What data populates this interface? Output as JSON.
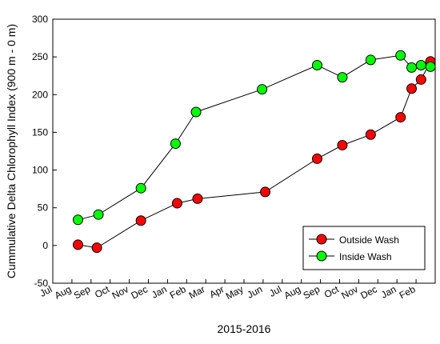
{
  "chart_data": {
    "type": "line",
    "title": "",
    "xlabel": "2015-2016",
    "ylabel": "Cummulative Delta Chlorophyll Index (900 m - 0 m)",
    "x_tick_labels": [
      "Jul",
      "Aug",
      "Sep",
      "Oct",
      "Nov",
      "Dec",
      "Jan",
      "Feb",
      "Mar",
      "Apr",
      "May",
      "Jun",
      "Jul",
      "Aug",
      "Sep",
      "Oct",
      "Nov",
      "Dec",
      "Jan",
      "Feb"
    ],
    "y_ticks": [
      -50,
      0,
      50,
      100,
      150,
      200,
      250,
      300
    ],
    "ylim": [
      -50,
      300
    ],
    "xlim": [
      "2015-07-01",
      "2016-02-29"
    ],
    "grid": false,
    "legend_position": "bottom-right",
    "series": [
      {
        "name": "Outside Wash",
        "color": "#ff0000",
        "points": [
          {
            "x": "2015-07-17",
            "y": 1
          },
          {
            "x": "2015-07-29",
            "y": -3
          },
          {
            "x": "2015-08-26",
            "y": 33
          },
          {
            "x": "2015-09-18",
            "y": 56
          },
          {
            "x": "2015-10-01",
            "y": 62
          },
          {
            "x": "2015-11-13",
            "y": 71
          },
          {
            "x": "2015-12-16",
            "y": 115
          },
          {
            "x": "2016-01-01",
            "y": 133
          },
          {
            "x": "2016-01-19",
            "y": 147
          },
          {
            "x": "2016-02-07",
            "y": 170
          },
          {
            "x": "2016-02-14",
            "y": 208
          },
          {
            "x": "2016-02-20",
            "y": 220
          },
          {
            "x": "2016-02-26",
            "y": 244
          }
        ]
      },
      {
        "name": "Inside Wash",
        "color": "#00ff00",
        "points": [
          {
            "x": "2015-07-17",
            "y": 34
          },
          {
            "x": "2015-07-30",
            "y": 41
          },
          {
            "x": "2015-08-26",
            "y": 76
          },
          {
            "x": "2015-09-17",
            "y": 135
          },
          {
            "x": "2015-09-30",
            "y": 177
          },
          {
            "x": "2015-11-11",
            "y": 207
          },
          {
            "x": "2015-12-16",
            "y": 239
          },
          {
            "x": "2016-01-01",
            "y": 223
          },
          {
            "x": "2016-01-19",
            "y": 246
          },
          {
            "x": "2016-02-07",
            "y": 252
          },
          {
            "x": "2016-02-14",
            "y": 236
          },
          {
            "x": "2016-02-20",
            "y": 239
          },
          {
            "x": "2016-02-26",
            "y": 237
          }
        ]
      }
    ]
  }
}
